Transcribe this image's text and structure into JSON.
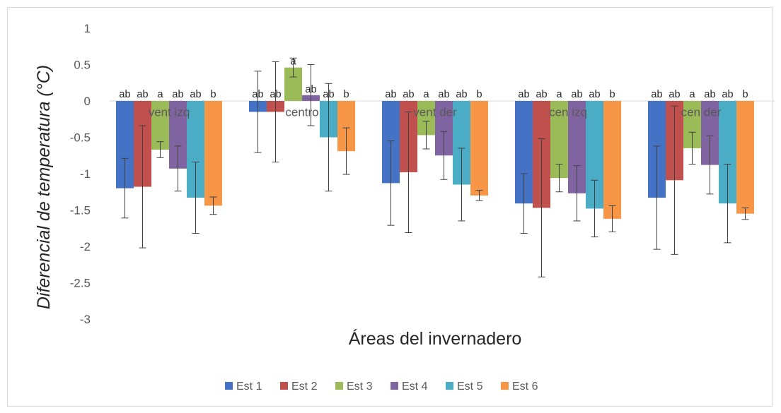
{
  "chart_data": {
    "type": "bar",
    "xlabel": "Áreas del invernadero",
    "ylabel": "Diferencial de temperatura (°C)",
    "ylim": [
      -3,
      1
    ],
    "yticks": [
      1,
      0.5,
      0,
      -0.5,
      -1,
      -1.5,
      -2,
      -2.5,
      -3
    ],
    "grid": false,
    "legend_position": "bottom",
    "categories": [
      "vent izq",
      "centro",
      "vent der",
      "cen izq",
      "cen der"
    ],
    "series": [
      {
        "name": "Est 1",
        "color": "#4472c4",
        "values": [
          -1.2,
          -0.15,
          -1.13,
          -1.41,
          -1.33
        ],
        "errors": [
          0.41,
          0.56,
          0.58,
          0.41,
          0.71
        ],
        "letters": [
          "ab",
          "ab",
          "ab",
          "ab",
          "ab"
        ]
      },
      {
        "name": "Est 2",
        "color": "#c0504d",
        "values": [
          -1.18,
          -0.15,
          -0.98,
          -1.47,
          -1.09
        ],
        "errors": [
          0.84,
          0.69,
          0.83,
          0.95,
          1.02
        ],
        "letters": [
          "ab",
          "ab",
          "ab",
          "ab",
          "ab"
        ]
      },
      {
        "name": "Est 3",
        "color": "#9bbb59",
        "values": [
          -0.67,
          0.46,
          -0.47,
          -1.06,
          -0.65
        ],
        "errors": [
          0.11,
          0.13,
          0.19,
          0.19,
          0.22
        ],
        "letters": [
          "a",
          "a",
          "a",
          "a",
          "a"
        ]
      },
      {
        "name": "Est 4",
        "color": "#8064a2",
        "values": [
          -0.93,
          0.08,
          -0.75,
          -1.27,
          -0.88
        ],
        "errors": [
          0.31,
          0.42,
          0.33,
          0.38,
          0.4
        ],
        "letters": [
          "ab",
          "ab",
          "ab",
          "ab",
          "ab"
        ]
      },
      {
        "name": "Est 5",
        "color": "#4bacc6",
        "values": [
          -1.33,
          -0.5,
          -1.15,
          -1.48,
          -1.41
        ],
        "errors": [
          0.49,
          0.74,
          0.5,
          0.39,
          0.54
        ],
        "letters": [
          "ab",
          "ab",
          "ab",
          "ab",
          "ab"
        ]
      },
      {
        "name": "Est 6",
        "color": "#f79646",
        "values": [
          -1.44,
          -0.69,
          -1.3,
          -1.62,
          -1.55
        ],
        "errors": [
          0.12,
          0.32,
          0.07,
          0.18,
          0.08
        ],
        "letters": [
          "b",
          "b",
          "b",
          "b",
          "b"
        ]
      }
    ]
  }
}
